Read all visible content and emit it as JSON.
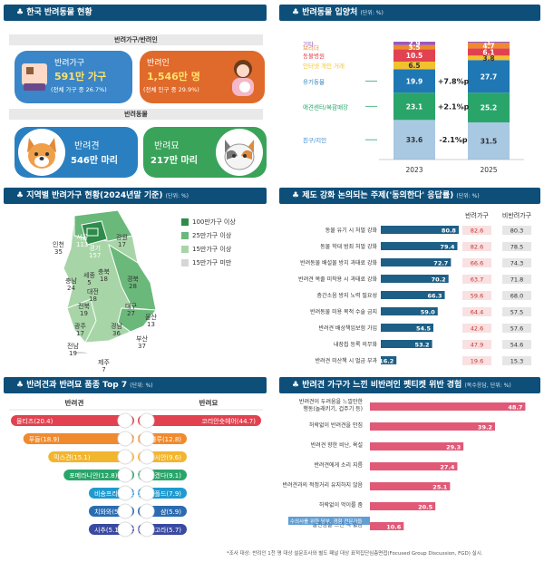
{
  "sec1": {
    "title": "♣ 한국 반려동물 현황",
    "sub1": "반려가구/반려인",
    "sub2": "반려동물",
    "households": {
      "label": "반려가구",
      "value": "591만 가구",
      "note": "(전체 가구 중 26.7%)",
      "color": "#3a86c8"
    },
    "people": {
      "label": "반려인",
      "value": "1,546만 명",
      "note": "(전체 인구 중 29.9%)",
      "color": "#e06a2b"
    },
    "dogs": {
      "label": "반려견",
      "value": "546만 마리",
      "color": "#2a7fc0"
    },
    "cats": {
      "label": "반려묘",
      "value": "217만 마리",
      "color": "#3aa35a"
    }
  },
  "sec2": {
    "title": "♣ 반려동물 입양처",
    "unit": "(단위: %)",
    "chart_data": {
      "type": "bar",
      "stacked": true,
      "categories": [
        "2023",
        "2025"
      ],
      "series": [
        {
          "name": "친구/지인",
          "values": [
            33.6,
            31.5
          ],
          "color": "#a9c9e3"
        },
        {
          "name": "애견센터/복합매장",
          "values": [
            23.1,
            25.2
          ],
          "color": "#2aa56a"
        },
        {
          "name": "유기동물",
          "values": [
            19.9,
            27.7
          ],
          "color": "#1f78b4"
        },
        {
          "name": "인터넷 개인 거래",
          "values": [
            6.5,
            3.8
          ],
          "color": "#f2c12e"
        },
        {
          "name": "동물병원",
          "values": [
            10.5,
            6.1
          ],
          "color": "#e2424f"
        },
        {
          "name": "브리더",
          "values": [
            3.5,
            4.7
          ],
          "color": "#f08a2e"
        },
        {
          "name": "기타",
          "values": [
            2.9,
            1.0
          ],
          "color": "#9b59b6"
        }
      ],
      "changes": [
        {
          "series": "유기동물",
          "text": "+7.8%p"
        },
        {
          "series": "애견센터/복합매장",
          "text": "+2.1%p"
        },
        {
          "series": "친구/지인",
          "text": "-2.1%p"
        }
      ]
    }
  },
  "sec3": {
    "title": "♣ 지역별 반려가구 현황(2024년말 기준)",
    "unit": "(단위: %)",
    "legend": [
      {
        "label": "100만가구 이상",
        "color": "#2e8b4a"
      },
      {
        "label": "25만가구 이상",
        "color": "#6ab97a"
      },
      {
        "label": "15만가구 이상",
        "color": "#a8d5a8"
      },
      {
        "label": "15만가구 미만",
        "color": "#d6d6d6"
      }
    ],
    "regions": [
      {
        "name": "인천",
        "value": "35"
      },
      {
        "name": "서울",
        "value": "113"
      },
      {
        "name": "경기",
        "value": "157"
      },
      {
        "name": "강원",
        "value": "17"
      },
      {
        "name": "세종",
        "value": "5"
      },
      {
        "name": "충북",
        "value": "18"
      },
      {
        "name": "충남",
        "value": "24"
      },
      {
        "name": "대전",
        "value": "18"
      },
      {
        "name": "경북",
        "value": "28"
      },
      {
        "name": "전북",
        "value": "19"
      },
      {
        "name": "대구",
        "value": "27"
      },
      {
        "name": "광주",
        "value": "17"
      },
      {
        "name": "경남",
        "value": "36"
      },
      {
        "name": "울산",
        "value": "13"
      },
      {
        "name": "부산",
        "value": "37"
      },
      {
        "name": "전남",
        "value": "19"
      },
      {
        "name": "제주",
        "value": "7"
      }
    ]
  },
  "sec4": {
    "title": "♣ 제도 강화 논의되는 주제('동의한다' 응답률)",
    "unit": "(단위: %)",
    "col_owner": "반려가구",
    "col_nonowner": "비반려가구",
    "chart_data": {
      "type": "bar",
      "orientation": "horizontal",
      "categories": [
        "동물 유기 시 처벌 강화",
        "동물 학대 범죄 처벌 강화",
        "반려동물 배설물 방치 과태료 강화",
        "반려견 목줄 미착용 시 과태료 강화",
        "층간소음 방지 노력 필요성",
        "반려동물 미용 목적 수술 금지",
        "반려견 배상책임보험 가입",
        "내장칩 등록 의무화",
        "반려견 미산책 시 벌금 부과"
      ],
      "values": [
        80.8,
        79.4,
        72.7,
        70.2,
        66.3,
        59.0,
        54.5,
        53.2,
        16.2
      ],
      "owner": [
        "82.6",
        "82.6",
        "66.6",
        "63.7",
        "59.6",
        "64.4",
        "42.6",
        "47.9",
        "19.6"
      ],
      "nonowner": [
        "80.3",
        "78.5",
        "74.3",
        "71.8",
        "68.0",
        "57.5",
        "57.6",
        "54.6",
        "15.3"
      ],
      "xlim": [
        0,
        100
      ]
    }
  },
  "sec5": {
    "title": "♣ 반려견과 반려묘 품종 Top 7",
    "unit": "(단위: %)",
    "dog_header": "반려견",
    "cat_header": "반려묘",
    "chart_data": {
      "type": "bar",
      "dogs": [
        {
          "name": "몰티즈",
          "value": 20.4
        },
        {
          "name": "푸들",
          "value": 18.9
        },
        {
          "name": "믹스견",
          "value": 15.1
        },
        {
          "name": "포메라니안",
          "value": 12.8
        },
        {
          "name": "비숑프리제",
          "value": 7.0
        },
        {
          "name": "치와와",
          "value": 5.3
        },
        {
          "name": "시추",
          "value": 5.1
        }
      ],
      "cats": [
        {
          "name": "코리안숏헤어",
          "value": 44.7
        },
        {
          "name": "러시안블루",
          "value": 12.8
        },
        {
          "name": "페르시안",
          "value": 9.6
        },
        {
          "name": "잘 모르겠다",
          "value": 9.1
        },
        {
          "name": "스코티시폴드",
          "value": 7.9
        },
        {
          "name": "샴",
          "value": 5.9
        },
        {
          "name": "터키쉬앙고라",
          "value": 5.7
        }
      ],
      "colors": [
        "#e2424f",
        "#f08a2e",
        "#f2b52e",
        "#2aa56a",
        "#1f9ad0",
        "#2b6cb0",
        "#3a4aa0"
      ]
    }
  },
  "sec6": {
    "title": "♣ 반려견 가구가 느낀 비반려인 펫티켓 위반 경험",
    "unit": "(복수응답, 단위: %)",
    "chart_data": {
      "type": "bar",
      "orientation": "horizontal",
      "categories": [
        "반려견이 두려움을 느낄만한 행동(놀래키기, 겁주기 등)",
        "허락없이 반려견을 만짐",
        "반려견 향한 비난, 욕설",
        "반려견에게 소리 지름",
        "반려견과의 적정거리 유지하지 않음",
        "허락없이 먹이를 줌",
        "불편함을 느낀 적 없음"
      ],
      "values": [
        48.7,
        39.2,
        29.3,
        27.4,
        25.1,
        20.5,
        10.6
      ],
      "xlim": [
        0,
        50
      ]
    },
    "note": "수의사를 위한 당부, 경험 전문가들"
  },
  "footnote": "*조사 대상: 반려인 1천 명 대상 설문조사와 별도 패널 대상 표적집단심층면접(Focused Group Discussion, FGD) 실시."
}
